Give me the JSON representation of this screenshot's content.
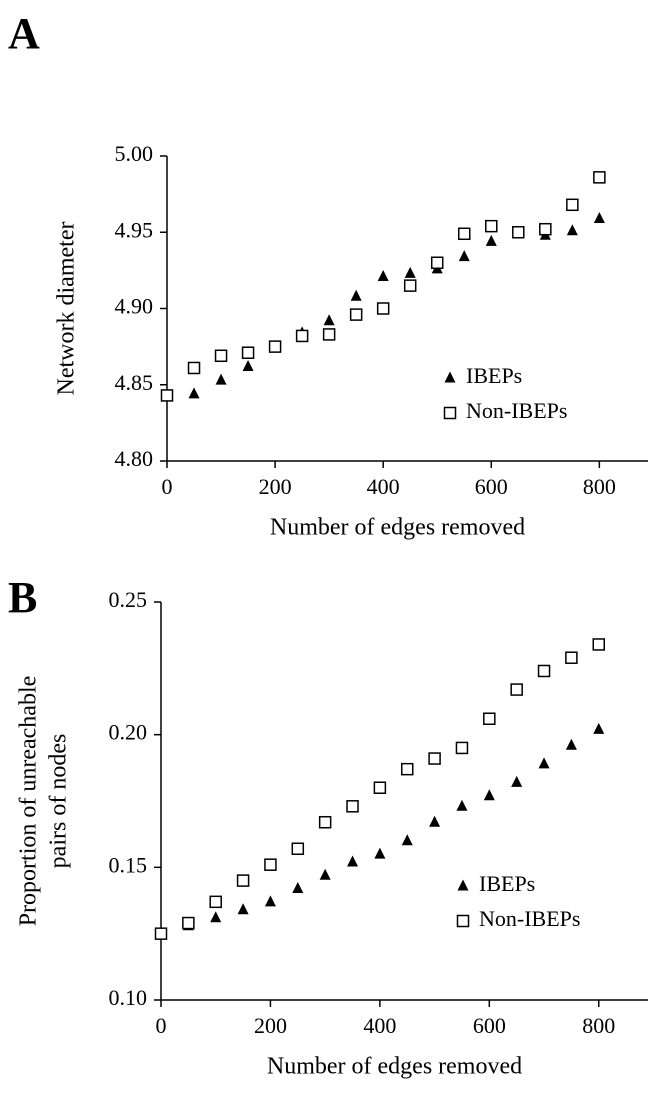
{
  "chart_data": [
    {
      "type": "scatter",
      "panel_label": "A",
      "xlabel": "Number of edges removed",
      "ylabel": "Network diameter",
      "xlim": [
        0,
        890
      ],
      "xticks": [
        0,
        200,
        400,
        600,
        800
      ],
      "ylim": [
        4.8,
        5.0
      ],
      "yticks": [
        {
          "value": 4.8,
          "label": "4.80"
        },
        4.85,
        {
          "value": 4.9,
          "label": "4.90"
        },
        4.95,
        {
          "value": 5.0,
          "label": "5.00"
        }
      ],
      "legend": "lower right",
      "series": [
        {
          "name": "IBEPs",
          "color": "#000000",
          "marker": "triangle",
          "x": [
            50,
            100,
            150,
            200,
            250,
            300,
            350,
            400,
            450,
            500,
            550,
            600,
            650,
            700,
            750,
            800
          ],
          "values": [
            4.844,
            4.853,
            4.862,
            4.875,
            4.884,
            4.892,
            4.908,
            4.921,
            4.923,
            4.926,
            4.934,
            4.944,
            4.95,
            4.948,
            4.951,
            4.959
          ]
        },
        {
          "name": "Non-IBEPs",
          "color": "#000000",
          "marker": "square",
          "x": [
            0,
            50,
            100,
            150,
            200,
            250,
            300,
            350,
            400,
            450,
            500,
            550,
            600,
            650,
            700,
            750,
            800
          ],
          "values": [
            4.843,
            4.861,
            4.869,
            4.871,
            4.875,
            4.882,
            4.883,
            4.896,
            4.9,
            4.915,
            4.93,
            4.949,
            4.954,
            4.95,
            4.952,
            4.968,
            4.986
          ]
        }
      ]
    },
    {
      "type": "scatter",
      "panel_label": "B",
      "xlabel": "Number of edges removed",
      "ylabel": [
        "Proportion of unreachable",
        "pairs of nodes"
      ],
      "xlim": [
        0,
        890
      ],
      "xticks": [
        0,
        200,
        400,
        600,
        800
      ],
      "ylim": [
        0.1,
        0.25
      ],
      "yticks": [
        {
          "value": 0.1,
          "label": "0.10"
        },
        0.15,
        {
          "value": 0.2,
          "label": "0.20"
        },
        0.25
      ],
      "legend": "lower right",
      "series": [
        {
          "name": "IBEPs",
          "color": "#000000",
          "marker": "triangle",
          "x": [
            50,
            100,
            150,
            200,
            250,
            300,
            350,
            400,
            450,
            500,
            550,
            600,
            650,
            700,
            750,
            800
          ],
          "values": [
            0.128,
            0.131,
            0.134,
            0.137,
            0.142,
            0.147,
            0.152,
            0.155,
            0.16,
            0.167,
            0.173,
            0.177,
            0.182,
            0.189,
            0.196,
            0.202
          ]
        },
        {
          "name": "Non-IBEPs",
          "color": "#000000",
          "marker": "square",
          "x": [
            0,
            50,
            100,
            150,
            200,
            250,
            300,
            350,
            400,
            450,
            500,
            550,
            600,
            650,
            700,
            750,
            800
          ],
          "values": [
            0.125,
            0.129,
            0.137,
            0.145,
            0.151,
            0.157,
            0.167,
            0.173,
            0.18,
            0.187,
            0.191,
            0.195,
            0.206,
            0.217,
            0.224,
            0.229,
            0.234
          ]
        }
      ]
    }
  ]
}
